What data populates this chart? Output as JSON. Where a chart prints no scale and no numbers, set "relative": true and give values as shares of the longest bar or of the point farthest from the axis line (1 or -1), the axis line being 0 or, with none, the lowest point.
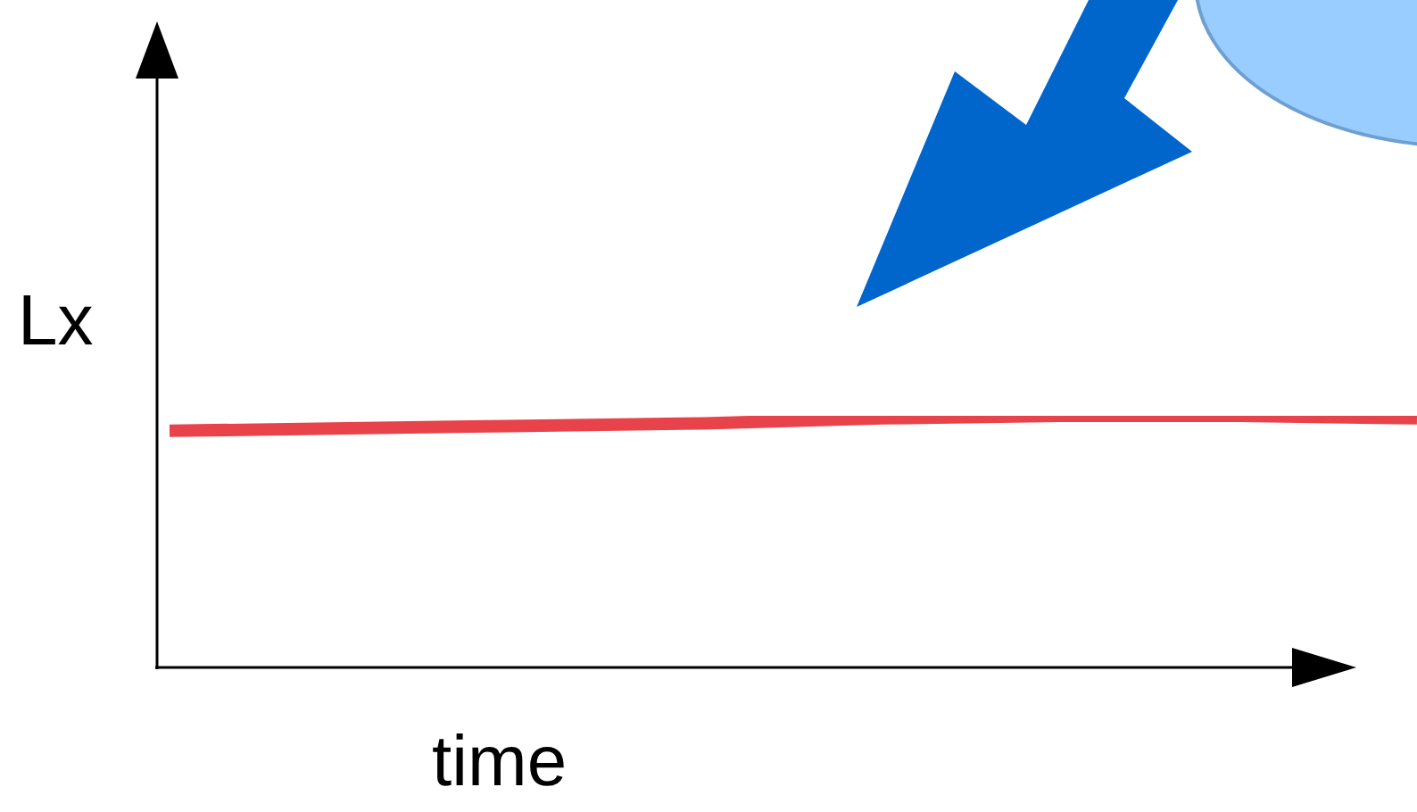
{
  "chart_data": {
    "type": "line",
    "relative": true,
    "xlabel": "time",
    "ylabel": "Lx",
    "categories": [
      null,
      null,
      null,
      null,
      null,
      null,
      null,
      null
    ],
    "series": [
      {
        "color": "#e8434a",
        "values": [
          0.94,
          0.95,
          0.96,
          0.97,
          0.99,
          1,
          1,
          0.99
        ]
      }
    ],
    "grid": false,
    "legend": false,
    "marker": "none",
    "line_style": "solid"
  }
}
